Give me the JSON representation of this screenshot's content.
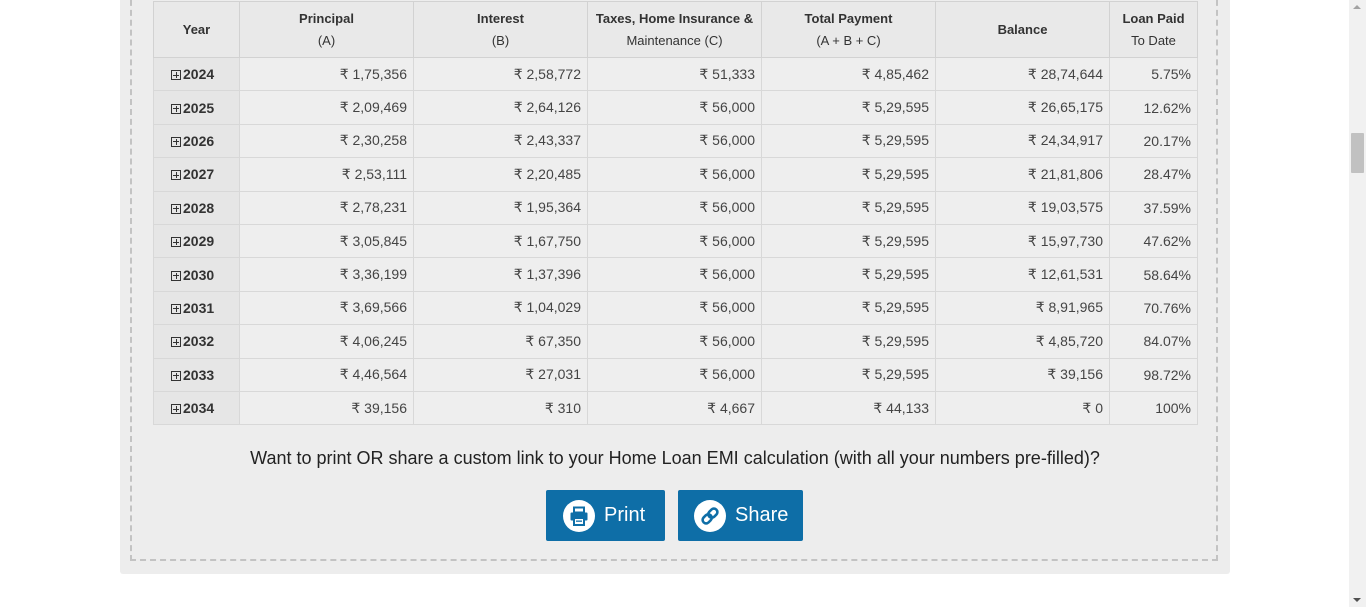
{
  "table": {
    "headers": [
      {
        "title": "Year",
        "sub": ""
      },
      {
        "title": "Principal",
        "sub": "(A)"
      },
      {
        "title": "Interest",
        "sub": "(B)"
      },
      {
        "title": "Taxes, Home Insurance &",
        "sub": "Maintenance (C)"
      },
      {
        "title": "Total Payment",
        "sub": "(A + B + C)"
      },
      {
        "title": "Balance",
        "sub": ""
      },
      {
        "title": "Loan Paid",
        "sub": "To Date"
      }
    ],
    "rows": [
      {
        "year": "2024",
        "principal": "₹ 1,75,356",
        "interest": "₹ 2,58,772",
        "taxes": "₹ 51,333",
        "total": "₹ 4,85,462",
        "balance": "₹ 28,74,644",
        "paid": "5.75%"
      },
      {
        "year": "2025",
        "principal": "₹ 2,09,469",
        "interest": "₹ 2,64,126",
        "taxes": "₹ 56,000",
        "total": "₹ 5,29,595",
        "balance": "₹ 26,65,175",
        "paid": "12.62%"
      },
      {
        "year": "2026",
        "principal": "₹ 2,30,258",
        "interest": "₹ 2,43,337",
        "taxes": "₹ 56,000",
        "total": "₹ 5,29,595",
        "balance": "₹ 24,34,917",
        "paid": "20.17%"
      },
      {
        "year": "2027",
        "principal": "₹ 2,53,111",
        "interest": "₹ 2,20,485",
        "taxes": "₹ 56,000",
        "total": "₹ 5,29,595",
        "balance": "₹ 21,81,806",
        "paid": "28.47%"
      },
      {
        "year": "2028",
        "principal": "₹ 2,78,231",
        "interest": "₹ 1,95,364",
        "taxes": "₹ 56,000",
        "total": "₹ 5,29,595",
        "balance": "₹ 19,03,575",
        "paid": "37.59%"
      },
      {
        "year": "2029",
        "principal": "₹ 3,05,845",
        "interest": "₹ 1,67,750",
        "taxes": "₹ 56,000",
        "total": "₹ 5,29,595",
        "balance": "₹ 15,97,730",
        "paid": "47.62%"
      },
      {
        "year": "2030",
        "principal": "₹ 3,36,199",
        "interest": "₹ 1,37,396",
        "taxes": "₹ 56,000",
        "total": "₹ 5,29,595",
        "balance": "₹ 12,61,531",
        "paid": "58.64%"
      },
      {
        "year": "2031",
        "principal": "₹ 3,69,566",
        "interest": "₹ 1,04,029",
        "taxes": "₹ 56,000",
        "total": "₹ 5,29,595",
        "balance": "₹ 8,91,965",
        "paid": "70.76%"
      },
      {
        "year": "2032",
        "principal": "₹ 4,06,245",
        "interest": "₹ 67,350",
        "taxes": "₹ 56,000",
        "total": "₹ 5,29,595",
        "balance": "₹ 4,85,720",
        "paid": "84.07%"
      },
      {
        "year": "2033",
        "principal": "₹ 4,46,564",
        "interest": "₹ 27,031",
        "taxes": "₹ 56,000",
        "total": "₹ 5,29,595",
        "balance": "₹ 39,156",
        "paid": "98.72%"
      },
      {
        "year": "2034",
        "principal": "₹ 39,156",
        "interest": "₹ 310",
        "taxes": "₹ 4,667",
        "total": "₹ 44,133",
        "balance": "₹ 0",
        "paid": "100%"
      }
    ]
  },
  "cta": {
    "text": "Want to print OR share a custom link to your Home Loan EMI calculation (with all your numbers pre-filled)?",
    "print_label": "Print",
    "share_label": "Share"
  },
  "colors": {
    "principal": "#87a828",
    "interest": "#ee8f2f",
    "taxes": "#5a3771",
    "balance": "#8e4213",
    "button": "#0e6ea7"
  },
  "icons": {
    "expand": "plus-square-icon",
    "print": "printer-icon",
    "share": "link-icon"
  }
}
